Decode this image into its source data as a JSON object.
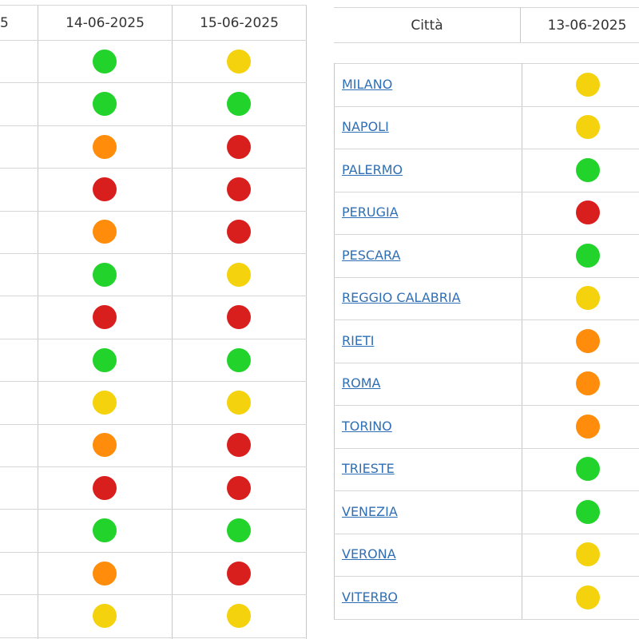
{
  "left_table": {
    "headers": {
      "col0_partial": "5",
      "col1": "14-06-2025",
      "col2": "15-06-2025"
    },
    "rows": [
      [
        "green",
        "yellow"
      ],
      [
        "green",
        "green"
      ],
      [
        "orange",
        "red"
      ],
      [
        "red",
        "red"
      ],
      [
        "orange",
        "red"
      ],
      [
        "green",
        "yellow"
      ],
      [
        "red",
        "red"
      ],
      [
        "green",
        "green"
      ],
      [
        "yellow",
        "yellow"
      ],
      [
        "orange",
        "red"
      ],
      [
        "red",
        "red"
      ],
      [
        "green",
        "green"
      ],
      [
        "orange",
        "red"
      ],
      [
        "yellow",
        "yellow"
      ]
    ]
  },
  "right_table": {
    "headers": {
      "city": "Città",
      "date": "13-06-2025"
    },
    "rows": [
      {
        "city": "MILANO",
        "level": "yellow"
      },
      {
        "city": "NAPOLI",
        "level": "yellow"
      },
      {
        "city": "PALERMO",
        "level": "green"
      },
      {
        "city": "PERUGIA",
        "level": "red"
      },
      {
        "city": "PESCARA",
        "level": "green"
      },
      {
        "city": "REGGIO CALABRIA",
        "level": "yellow"
      },
      {
        "city": "RIETI",
        "level": "orange"
      },
      {
        "city": "ROMA",
        "level": "orange"
      },
      {
        "city": "TORINO",
        "level": "orange"
      },
      {
        "city": "TRIESTE",
        "level": "green"
      },
      {
        "city": "VENEZIA",
        "level": "green"
      },
      {
        "city": "VERONA",
        "level": "yellow"
      },
      {
        "city": "VITERBO",
        "level": "yellow"
      }
    ]
  },
  "colors": {
    "green": "#22d32b",
    "yellow": "#f4d20d",
    "orange": "#ff8c0a",
    "red": "#d91e1e"
  }
}
